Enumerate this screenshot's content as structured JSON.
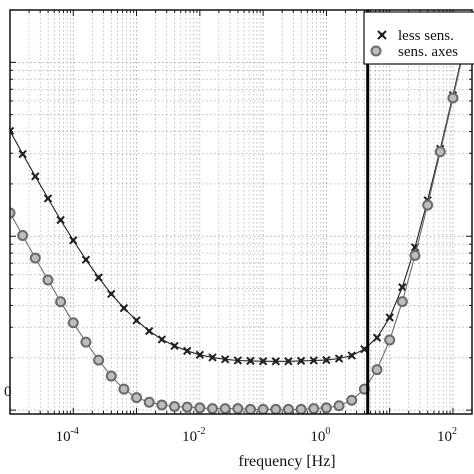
{
  "chart_data": {
    "type": "line",
    "xlabel": "frequency [Hz]",
    "ylabel": "",
    "xscale": "log",
    "yscale": "log",
    "xlim": [
      1e-05,
      200
    ],
    "ylim": [
      0.95,
      200
    ],
    "grid": true,
    "legend_position": "top-right",
    "x_tick_labels": [
      {
        "base": "10",
        "exp": "-4",
        "value": 0.0001
      },
      {
        "base": "10",
        "exp": "-2",
        "value": 0.01
      },
      {
        "base": "10",
        "exp": "0",
        "value": 1
      },
      {
        "base": "10",
        "exp": "2",
        "value": 100
      }
    ],
    "y_tick_label_partial": "0",
    "vertical_marker_x": 4.5,
    "series": [
      {
        "name": "less sens.",
        "marker": "x",
        "color": "#222222",
        "x": [
          1e-05,
          1.585e-05,
          2.512e-05,
          3.981e-05,
          6.31e-05,
          0.0001,
          0.0001585,
          0.0002512,
          0.0003981,
          0.000631,
          0.001,
          0.001585,
          0.002512,
          0.003981,
          0.00631,
          0.01,
          0.01585,
          0.02512,
          0.03981,
          0.0631,
          0.1,
          0.1585,
          0.2512,
          0.3981,
          0.631,
          1,
          1.585,
          2.512,
          3.981,
          6.31,
          10,
          15.85,
          25.12,
          39.81,
          63.1,
          100,
          158.5
        ],
        "y": [
          40.3,
          29.7,
          22.1,
          16.5,
          12.4,
          9.47,
          7.33,
          5.79,
          4.66,
          3.86,
          3.28,
          2.85,
          2.55,
          2.34,
          2.19,
          2.08,
          2.01,
          1.96,
          1.93,
          1.92,
          1.91,
          1.91,
          1.91,
          1.92,
          1.93,
          1.94,
          1.98,
          2.06,
          2.24,
          2.61,
          3.41,
          5.09,
          8.64,
          16.1,
          31.8,
          64.6,
          134
        ]
      },
      {
        "name": "sens. axes",
        "marker": "o",
        "color": "#7a7a7a",
        "x": [
          1e-05,
          1.585e-05,
          2.512e-05,
          3.981e-05,
          6.31e-05,
          0.0001,
          0.0001585,
          0.0002512,
          0.0003981,
          0.000631,
          0.001,
          0.001585,
          0.002512,
          0.003981,
          0.00631,
          0.01,
          0.01585,
          0.02512,
          0.03981,
          0.0631,
          0.1,
          0.1585,
          0.2512,
          0.3981,
          0.631,
          1,
          1.585,
          2.512,
          3.981,
          6.31,
          10,
          15.85,
          25.12,
          39.81,
          63.1,
          100,
          158.5
        ],
        "y": [
          13.6,
          10.1,
          7.49,
          5.6,
          4.2,
          3.18,
          2.46,
          1.94,
          1.57,
          1.32,
          1.18,
          1.11,
          1.07,
          1.05,
          1.04,
          1.03,
          1.02,
          1.02,
          1.02,
          1.01,
          1.01,
          1.01,
          1.01,
          1.01,
          1.02,
          1.03,
          1.06,
          1.14,
          1.32,
          1.71,
          2.53,
          4.21,
          7.76,
          15.1,
          30.6,
          62.4,
          129
        ]
      }
    ]
  }
}
